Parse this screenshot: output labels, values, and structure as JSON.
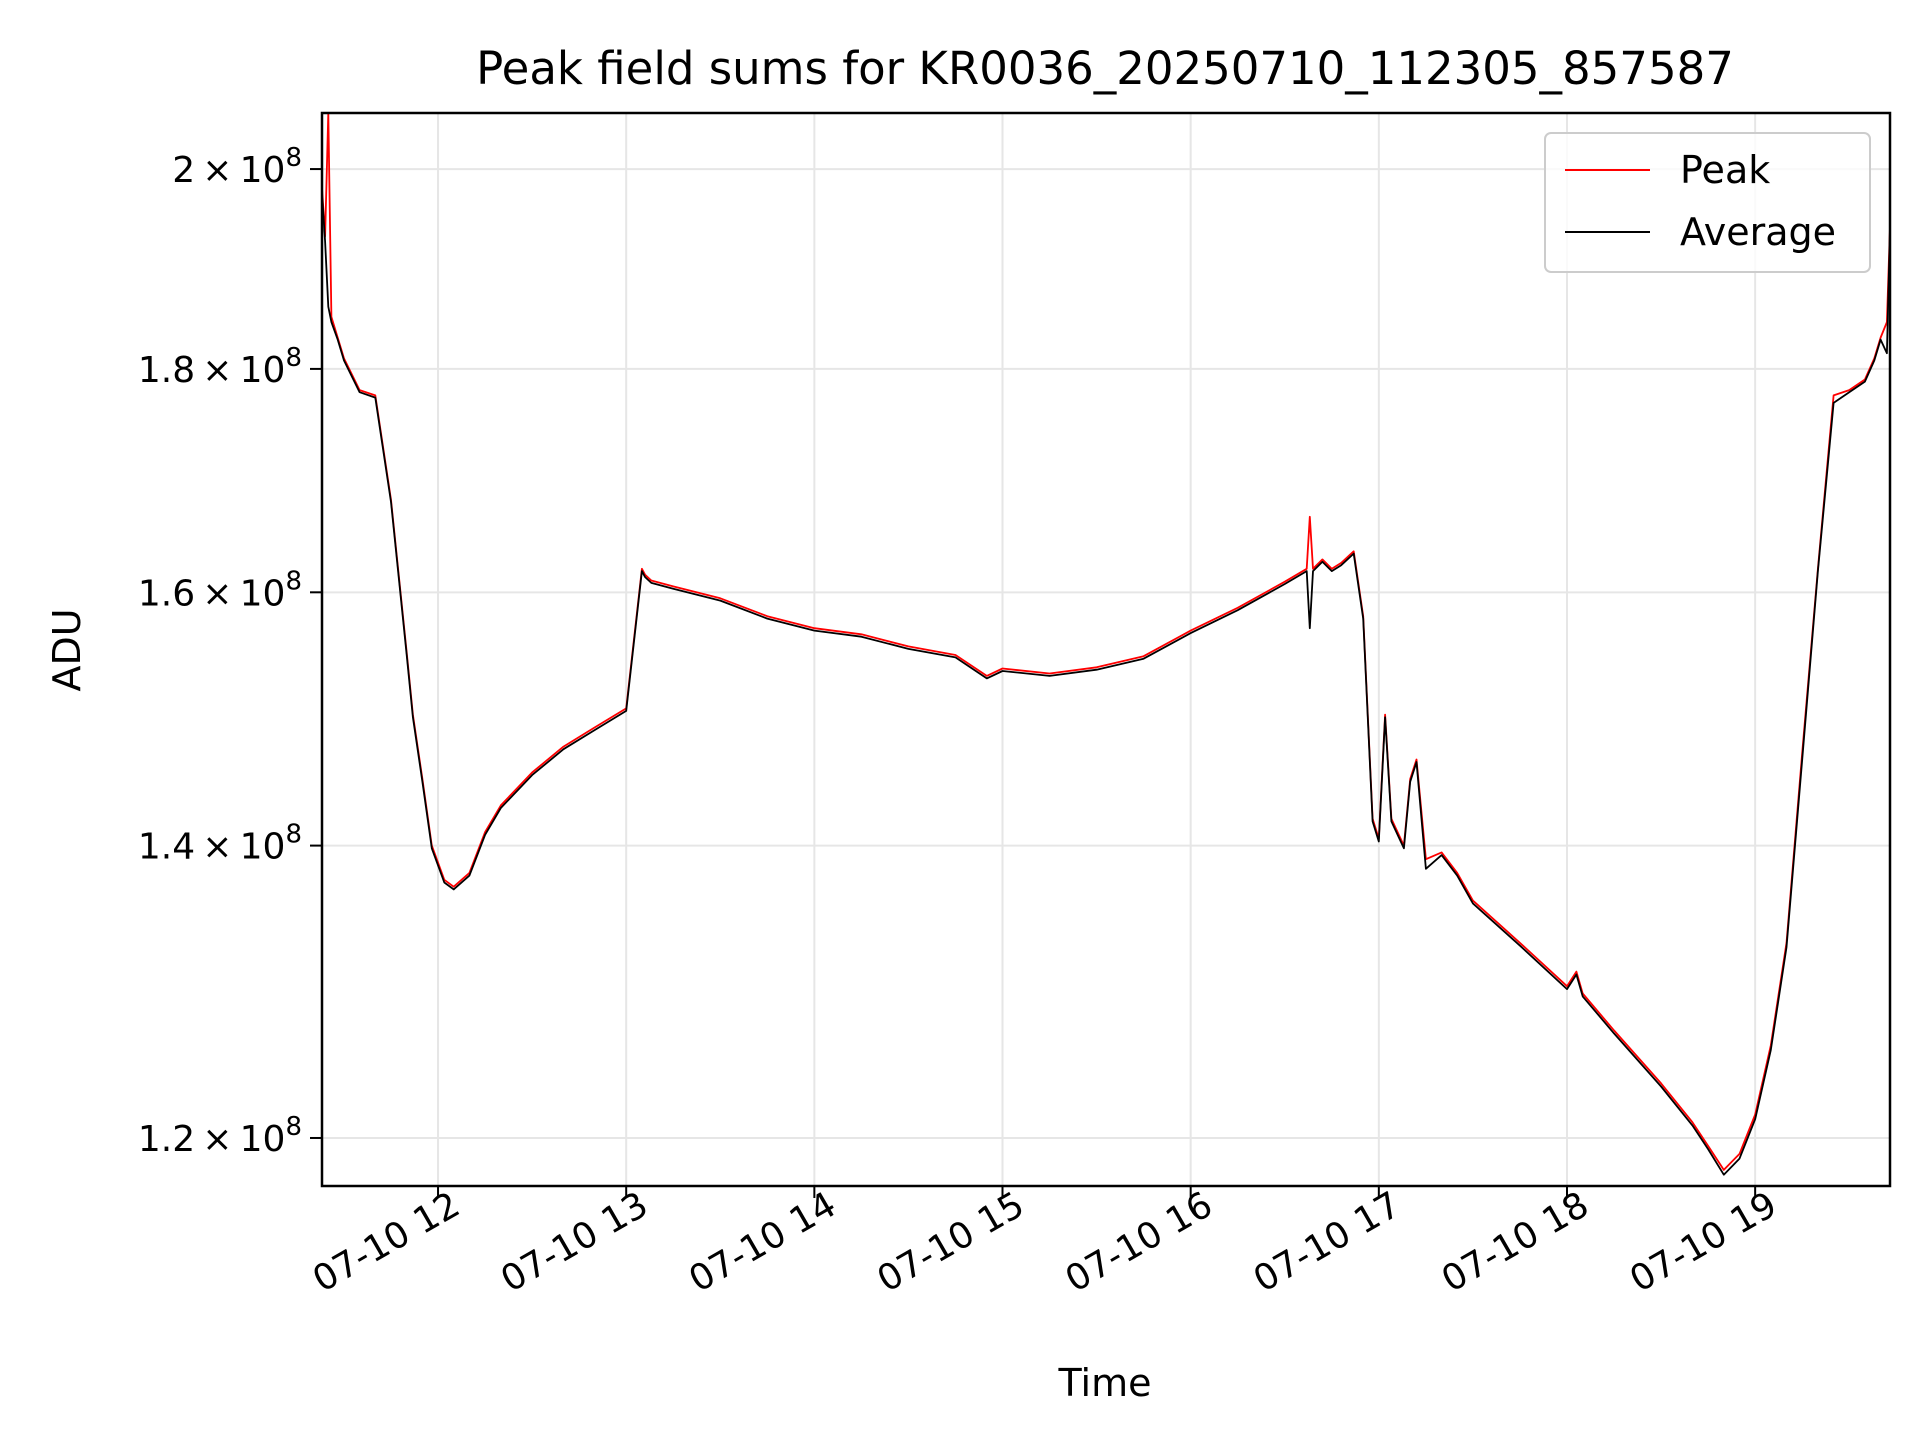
{
  "chart_data": {
    "type": "line",
    "title": "Peak field sums for KR0036_20250710_112305_857587",
    "xlabel": "Time",
    "ylabel": "ADU",
    "xlim": [
      "07-10 11:23",
      "07-10 19:43"
    ],
    "ylim": [
      117000000,
      206000000
    ],
    "yscale": "log",
    "grid": true,
    "legend": "top-right",
    "xticks": [
      {
        "label": "07-10 12",
        "value": "07-10 12:00"
      },
      {
        "label": "07-10 13",
        "value": "07-10 13:00"
      },
      {
        "label": "07-10 14",
        "value": "07-10 14:00"
      },
      {
        "label": "07-10 15",
        "value": "07-10 15:00"
      },
      {
        "label": "07-10 16",
        "value": "07-10 16:00"
      },
      {
        "label": "07-10 17",
        "value": "07-10 17:00"
      },
      {
        "label": "07-10 18",
        "value": "07-10 18:00"
      },
      {
        "label": "07-10 19",
        "value": "07-10 19:00"
      }
    ],
    "yticks": [
      {
        "value": 120000000,
        "mantissa": "1.2",
        "base": "10",
        "exp": "8"
      },
      {
        "value": 140000000,
        "mantissa": "1.4",
        "base": "10",
        "exp": "8"
      },
      {
        "value": 160000000,
        "mantissa": "1.6",
        "base": "10",
        "exp": "8"
      },
      {
        "value": 180000000,
        "mantissa": "1.8",
        "base": "10",
        "exp": "8"
      },
      {
        "value": 200000000,
        "mantissa": "2",
        "base": "10",
        "exp": "8"
      }
    ],
    "x": [
      "07-10 11:23",
      "07-10 11:24",
      "07-10 11:25",
      "07-10 11:26",
      "07-10 11:28",
      "07-10 11:30",
      "07-10 11:35",
      "07-10 11:40",
      "07-10 11:45",
      "07-10 11:50",
      "07-10 11:52",
      "07-10 11:55",
      "07-10 11:58",
      "07-10 12:02",
      "07-10 12:05",
      "07-10 12:10",
      "07-10 12:15",
      "07-10 12:20",
      "07-10 12:30",
      "07-10 12:40",
      "07-10 12:50",
      "07-10 13:00",
      "07-10 13:05",
      "07-10 13:06",
      "07-10 13:08",
      "07-10 13:15",
      "07-10 13:30",
      "07-10 13:45",
      "07-10 14:00",
      "07-10 14:15",
      "07-10 14:30",
      "07-10 14:45",
      "07-10 14:55",
      "07-10 15:00",
      "07-10 15:15",
      "07-10 15:30",
      "07-10 15:45",
      "07-10 16:00",
      "07-10 16:15",
      "07-10 16:30",
      "07-10 16:37",
      "07-10 16:38",
      "07-10 16:39",
      "07-10 16:42",
      "07-10 16:45",
      "07-10 16:48",
      "07-10 16:52",
      "07-10 16:55",
      "07-10 16:58",
      "07-10 17:00",
      "07-10 17:02",
      "07-10 17:04",
      "07-10 17:06",
      "07-10 17:08",
      "07-10 17:10",
      "07-10 17:12",
      "07-10 17:15",
      "07-10 17:20",
      "07-10 17:25",
      "07-10 17:30",
      "07-10 17:45",
      "07-10 18:00",
      "07-10 18:03",
      "07-10 18:05",
      "07-10 18:15",
      "07-10 18:30",
      "07-10 18:40",
      "07-10 18:45",
      "07-10 18:50",
      "07-10 18:55",
      "07-10 19:00",
      "07-10 19:05",
      "07-10 19:10",
      "07-10 19:15",
      "07-10 19:20",
      "07-10 19:25",
      "07-10 19:30",
      "07-10 19:35",
      "07-10 19:38",
      "07-10 19:40",
      "07-10 19:42",
      "07-10 19:43"
    ],
    "series": [
      {
        "name": "Peak",
        "color": "#ff0000",
        "values": [
          198000000,
          193000000,
          206000000,
          185000000,
          183000000,
          181000000,
          178000000,
          177500000,
          168000000,
          155000000,
          150000000,
          145000000,
          140000000,
          137500000,
          137000000,
          138000000,
          141000000,
          143000000,
          145500000,
          147500000,
          149000000,
          150500000,
          162000000,
          161500000,
          161000000,
          160500000,
          159500000,
          158000000,
          157000000,
          156500000,
          155500000,
          154800000,
          153100000,
          153700000,
          153300000,
          153800000,
          154700000,
          156800000,
          158700000,
          160900000,
          162000000,
          166500000,
          162000000,
          162800000,
          162000000,
          162500000,
          163500000,
          158000000,
          142000000,
          140500000,
          150000000,
          142000000,
          141000000,
          140000000,
          145000000,
          146500000,
          139000000,
          139500000,
          138000000,
          136000000,
          133000000,
          130000000,
          131000000,
          129500000,
          127000000,
          123500000,
          121000000,
          119500000,
          118000000,
          119000000,
          121500000,
          126000000,
          133000000,
          147000000,
          162000000,
          177500000,
          178000000,
          179000000,
          181000000,
          183000000,
          184500000,
          194000000
        ]
      },
      {
        "name": "Average",
        "color": "#000000",
        "values": [
          197500000,
          192500000,
          186000000,
          184500000,
          182800000,
          180800000,
          177800000,
          177300000,
          167800000,
          154800000,
          149800000,
          144800000,
          139800000,
          137300000,
          136800000,
          137800000,
          140800000,
          142800000,
          145300000,
          147300000,
          148800000,
          150300000,
          161800000,
          161300000,
          160800000,
          160300000,
          159300000,
          157800000,
          156800000,
          156300000,
          155300000,
          154600000,
          152900000,
          153500000,
          153100000,
          153600000,
          154500000,
          156600000,
          158500000,
          160700000,
          161800000,
          157000000,
          161800000,
          162600000,
          161800000,
          162300000,
          163300000,
          157800000,
          141800000,
          140300000,
          149800000,
          141800000,
          140800000,
          139800000,
          144800000,
          146300000,
          138300000,
          139300000,
          137800000,
          135800000,
          132800000,
          129800000,
          130800000,
          129300000,
          126800000,
          123300000,
          120800000,
          119300000,
          117700000,
          118700000,
          121200000,
          125700000,
          132700000,
          146500000,
          161800000,
          176800000,
          177800000,
          178800000,
          180800000,
          182800000,
          181500000,
          193800000
        ]
      }
    ]
  }
}
